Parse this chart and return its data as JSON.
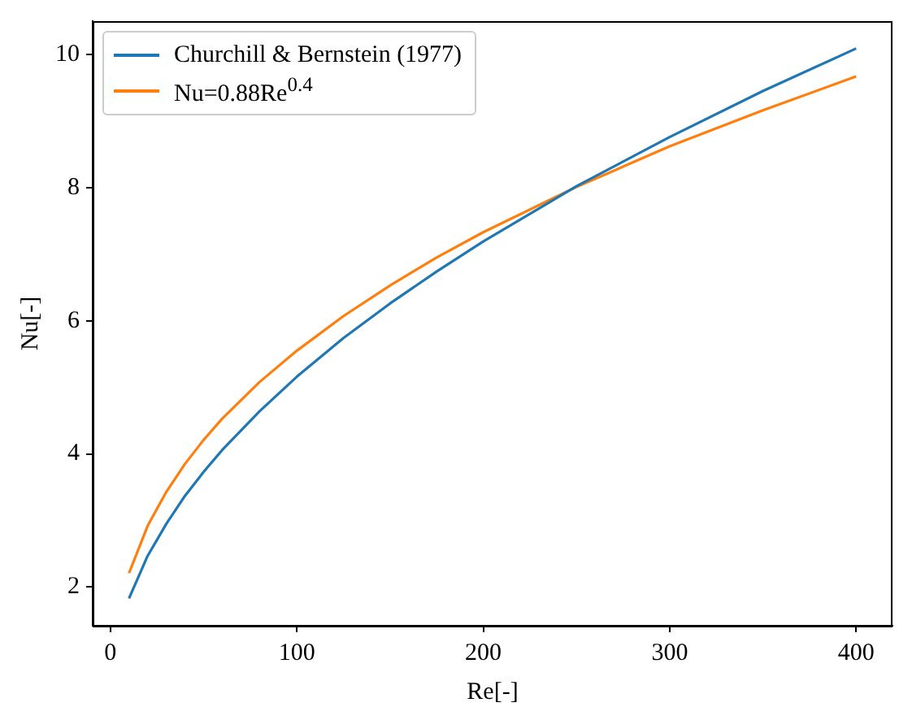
{
  "chart_data": {
    "type": "line",
    "xlabel": "Re[-]",
    "ylabel": "Nu[-]",
    "x": [
      10,
      20,
      30,
      40,
      50,
      60,
      80,
      100,
      125,
      150,
      175,
      200,
      250,
      300,
      350,
      400
    ],
    "series": [
      {
        "name": "Churchill & Bernstein (1977)",
        "color": "#1f77b4",
        "values": [
          1.83,
          2.47,
          2.95,
          3.37,
          3.73,
          4.06,
          4.64,
          5.16,
          5.74,
          6.26,
          6.74,
          7.19,
          8.02,
          8.76,
          9.45,
          10.09
        ]
      },
      {
        "name": "Nu=0.88Re$^{0.4}$",
        "color": "#ff7f0e",
        "values": [
          2.21,
          2.92,
          3.43,
          3.85,
          4.21,
          4.53,
          5.08,
          5.55,
          6.07,
          6.53,
          6.95,
          7.33,
          8.01,
          8.62,
          9.16,
          9.67
        ]
      }
    ],
    "xlim": [
      -9.5,
      419.5
    ],
    "xticks": [
      0,
      100,
      200,
      300,
      400
    ],
    "ylim": [
      1.42,
      10.5
    ],
    "yticks": [
      2,
      4,
      6,
      8,
      10
    ],
    "grid": false,
    "legend": "top left",
    "marker": "none",
    "line_style": "solid"
  }
}
